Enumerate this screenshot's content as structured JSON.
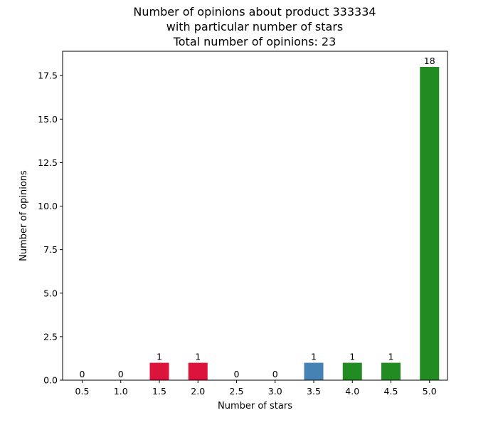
{
  "chart_data": {
    "type": "bar",
    "title_lines": [
      "Number of opinions about product 333334",
      "with particular number of stars",
      "Total number of opinions: 23"
    ],
    "xlabel": "Number of stars",
    "ylabel": "Number of opinions",
    "categories": [
      "0.5",
      "1.0",
      "1.5",
      "2.0",
      "2.5",
      "3.0",
      "3.5",
      "4.0",
      "4.5",
      "5.0"
    ],
    "values": [
      0,
      0,
      1,
      1,
      0,
      0,
      1,
      1,
      1,
      18
    ],
    "bar_colors": [
      "#dc143c",
      "#dc143c",
      "#dc143c",
      "#dc143c",
      "#4682b4",
      "#4682b4",
      "#4682b4",
      "#228b22",
      "#228b22",
      "#228b22"
    ],
    "data_labels": [
      "0",
      "0",
      "1",
      "1",
      "0",
      "0",
      "1",
      "1",
      "1",
      "18"
    ],
    "yticks": [
      0,
      2.5,
      5,
      7.5,
      10,
      12.5,
      15,
      17.5
    ],
    "ytick_labels": [
      "0.0",
      "2.5",
      "5.0",
      "7.5",
      "10.0",
      "12.5",
      "15.0",
      "17.5"
    ],
    "ylim": [
      0,
      18.9
    ],
    "grid": false,
    "legend": "none"
  }
}
